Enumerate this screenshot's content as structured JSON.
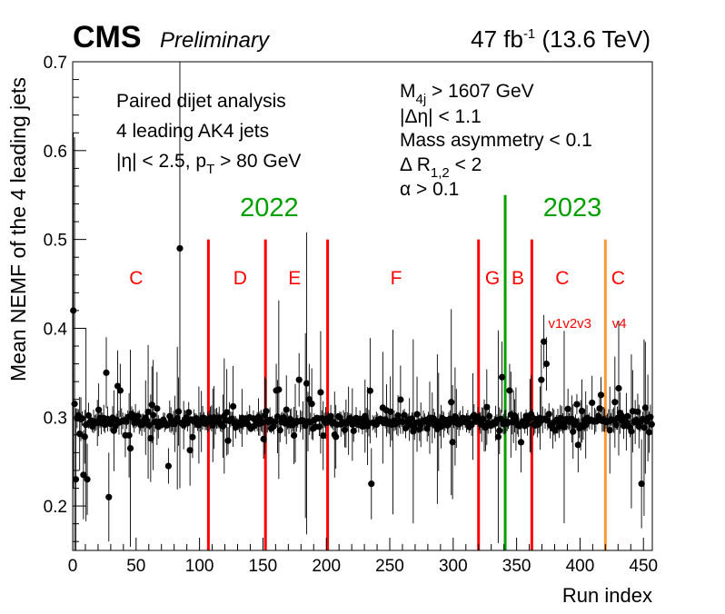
{
  "header": {
    "experiment": "CMS",
    "status": "Preliminary",
    "lumi_value": "47 fb",
    "lumi_exp": "-1",
    "energy": "(13.6 TeV)"
  },
  "annotations_left": {
    "line1": "Paired dijet analysis",
    "line2": "4 leading AK4 jets",
    "line3_eta": "|η| < 2.5, p",
    "line3_sub": "T",
    "line3_tail": " > 80 GeV"
  },
  "annotations_right": {
    "m4j_main": "M",
    "m4j_sub": "4j",
    "m4j_tail": " > 1607 GeV",
    "deta": "|Δη| < 1.1",
    "asym": "Mass asymmetry < 0.1",
    "dr_main": "Δ R",
    "dr_sub": "1,2",
    "dr_tail": " < 2",
    "alpha": "α > 0.1"
  },
  "years": {
    "y2022": "2022",
    "y2023": "2023"
  },
  "colors": {
    "era": "#ff0000",
    "year": "#00a000",
    "version": "#ff9933",
    "marker": "#000000"
  },
  "chart_data": {
    "type": "scatter",
    "xlabel": "Run index",
    "ylabel": "Mean NEMF of the 4 leading jets",
    "xlim": [
      0,
      457
    ],
    "ylim": [
      0.15,
      0.7
    ],
    "xticks": [
      0,
      50,
      100,
      150,
      200,
      250,
      300,
      350,
      400,
      450
    ],
    "yticks": [
      0.2,
      0.3,
      0.4,
      0.5,
      0.6,
      0.7
    ],
    "era_boundaries": [
      107,
      152,
      201,
      320,
      341,
      362,
      420
    ],
    "era_labels": [
      {
        "label": "C",
        "x": 50
      },
      {
        "label": "D",
        "x": 132
      },
      {
        "label": "E",
        "x": 175
      },
      {
        "label": "F",
        "x": 255
      },
      {
        "label": "G",
        "x": 331
      },
      {
        "label": "B",
        "x": 351
      },
      {
        "label": "C",
        "x": 386
      },
      {
        "label": "C",
        "x": 430
      }
    ],
    "version_labels": [
      {
        "label": "v1v2v3",
        "x": 392
      },
      {
        "label": "v4",
        "x": 431
      }
    ],
    "year_labels": [
      {
        "label": "2022",
        "x": 155
      },
      {
        "label": "2023",
        "x": 394
      }
    ],
    "baseline": 0.295,
    "n_points": 457,
    "highlighted_points": [
      {
        "x": 0,
        "y": 0.42,
        "err": 0.2
      },
      {
        "x": 84,
        "y": 0.49,
        "err": 0.27
      },
      {
        "x": 1,
        "y": 0.315,
        "err": 0.3
      },
      {
        "x": 2,
        "y": 0.23,
        "err": 0.08
      },
      {
        "x": 8,
        "y": 0.235,
        "err": 0.05
      },
      {
        "x": 11,
        "y": 0.23,
        "err": 0.04
      },
      {
        "x": 28,
        "y": 0.21,
        "err": 0.05
      },
      {
        "x": 26,
        "y": 0.35,
        "err": 0.04
      },
      {
        "x": 35,
        "y": 0.335,
        "err": 0.04
      },
      {
        "x": 37,
        "y": 0.33,
        "err": 0.03
      },
      {
        "x": 75,
        "y": 0.245,
        "err": 0.02
      },
      {
        "x": 160,
        "y": 0.33,
        "err": 0.03
      },
      {
        "x": 178,
        "y": 0.342,
        "err": 0.03
      },
      {
        "x": 184,
        "y": 0.338,
        "err": 0.17
      },
      {
        "x": 186,
        "y": 0.32,
        "err": 0.04
      },
      {
        "x": 188,
        "y": 0.315,
        "err": 0.04
      },
      {
        "x": 235,
        "y": 0.225,
        "err": 0.04
      },
      {
        "x": 338,
        "y": 0.345,
        "err": 0.04
      },
      {
        "x": 344,
        "y": 0.33,
        "err": 0.03
      },
      {
        "x": 369,
        "y": 0.342,
        "err": 0.04
      },
      {
        "x": 371,
        "y": 0.385,
        "err": 0.03
      },
      {
        "x": 373,
        "y": 0.36,
        "err": 0.03
      },
      {
        "x": 416,
        "y": 0.325,
        "err": 0.02
      },
      {
        "x": 448,
        "y": 0.225,
        "err": 0.05
      }
    ]
  }
}
